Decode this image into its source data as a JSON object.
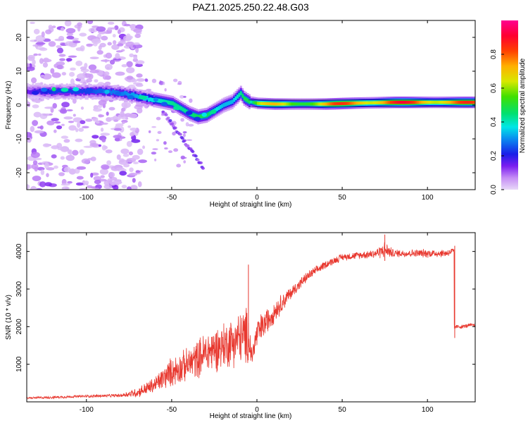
{
  "title": "PAZ1.2025.250.22.48.G03",
  "colors": {
    "snr_line": "#e8382f",
    "axis": "#000000",
    "background": "#ffffff"
  },
  "chart_data": [
    {
      "type": "heatmap",
      "name": "spectrogram",
      "xlabel": "Height of straight line (km)",
      "ylabel": "Frequency (Hz)",
      "xlim": [
        -135,
        128
      ],
      "ylim": [
        -25,
        25
      ],
      "xticks": [
        -100,
        -50,
        0,
        50,
        100
      ],
      "yticks": [
        -20,
        -10,
        0,
        10,
        20
      ],
      "ridge": {
        "x": [
          -135,
          -120,
          -100,
          -90,
          -80,
          -70,
          -60,
          -50,
          -45,
          -40,
          -35,
          -30,
          -25,
          -20,
          -15,
          -10,
          -8,
          -5,
          0,
          10,
          20,
          40,
          60,
          80,
          100,
          115,
          128
        ],
        "y": [
          4,
          4,
          4,
          4,
          3.5,
          2.5,
          1.5,
          0.5,
          -1,
          -2.5,
          -3.5,
          -3,
          -1.5,
          0,
          1,
          3.5,
          2,
          1,
          0.5,
          0.3,
          0.3,
          0.3,
          0.6,
          0.8,
          0.8,
          0.8,
          0.8
        ],
        "amplitude": [
          0.15,
          0.25,
          0.25,
          0.3,
          0.3,
          0.35,
          0.4,
          0.45,
          0.45,
          0.45,
          0.5,
          0.5,
          0.4,
          0.35,
          0.35,
          0.45,
          0.5,
          0.5,
          0.75,
          0.75,
          0.7,
          0.85,
          0.95,
          0.95,
          0.95,
          0.9,
          0.9
        ]
      },
      "colorbar": {
        "label": "Normalized spectral amplitude",
        "range": [
          0,
          1
        ],
        "ticks": [
          "0.0",
          "0.2",
          "0.4",
          "0.6",
          "0.8"
        ]
      }
    },
    {
      "type": "line",
      "name": "snr",
      "xlabel": "Height of straight line (km)",
      "ylabel": "SNR (10 * v/v)",
      "xlim": [
        -135,
        128
      ],
      "ylim": [
        0,
        4500
      ],
      "xticks": [
        -100,
        -50,
        0,
        50,
        100
      ],
      "yticks": [
        1000,
        2000,
        3000,
        4000
      ],
      "series": [
        {
          "name": "SNR",
          "x": [
            -135,
            -120,
            -100,
            -80,
            -70,
            -60,
            -50,
            -40,
            -30,
            -20,
            -10,
            -5,
            -3,
            0,
            5,
            10,
            20,
            30,
            40,
            50,
            60,
            70,
            75,
            80,
            90,
            100,
            110,
            115,
            116,
            120,
            128
          ],
          "y": [
            100,
            120,
            150,
            170,
            250,
            450,
            800,
            1000,
            1300,
            1500,
            1700,
            1750,
            1200,
            1800,
            2100,
            2400,
            2900,
            3350,
            3650,
            3850,
            3900,
            3950,
            4050,
            3950,
            3950,
            3950,
            3950,
            4000,
            2000,
            2000,
            2050
          ],
          "noise": [
            30,
            40,
            40,
            50,
            150,
            250,
            450,
            500,
            650,
            700,
            800,
            900,
            300,
            500,
            400,
            350,
            200,
            150,
            120,
            110,
            110,
            150,
            250,
            120,
            120,
            130,
            120,
            120,
            60,
            60,
            60
          ]
        }
      ],
      "spikes": [
        {
          "x": -5,
          "y": 3650
        },
        {
          "x": 75,
          "y": 4450
        },
        {
          "x": 116,
          "y": 4150
        }
      ]
    }
  ]
}
